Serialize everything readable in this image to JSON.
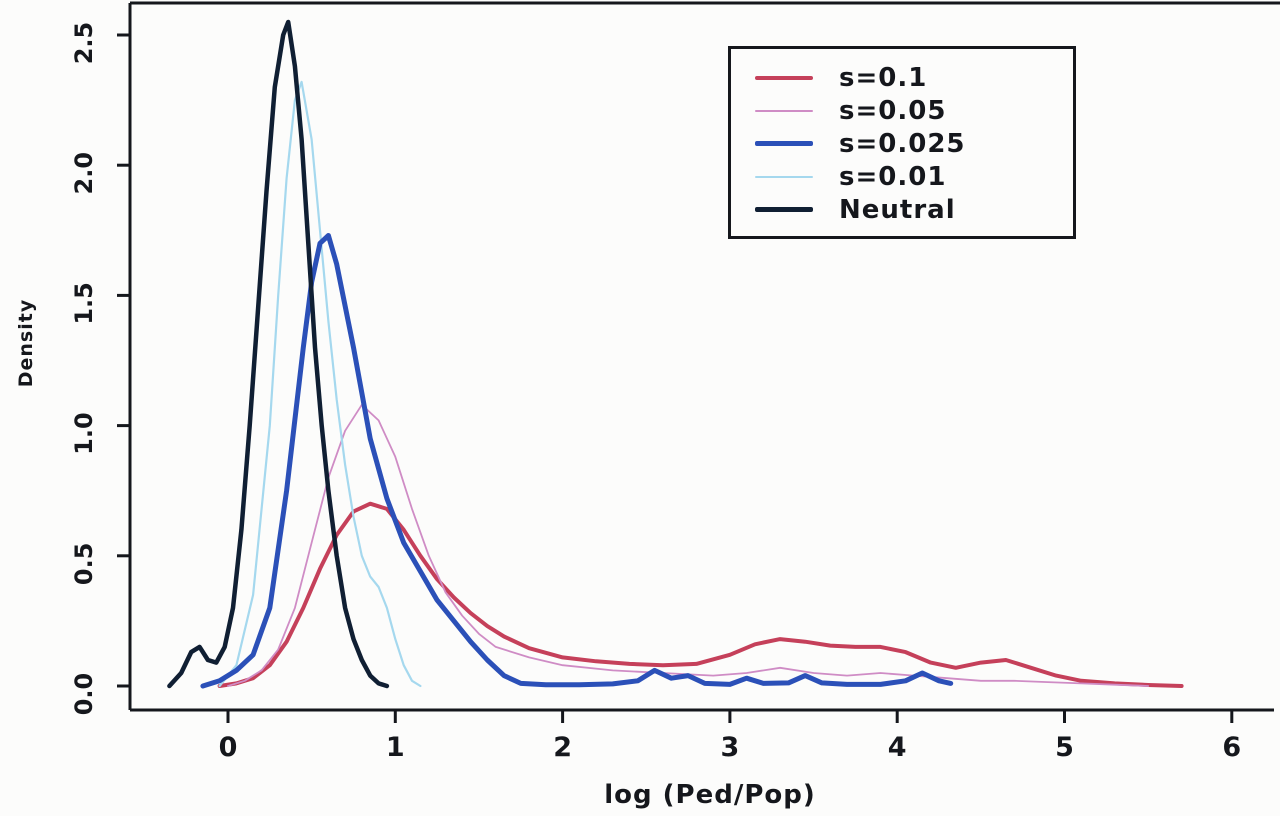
{
  "chart_data": {
    "type": "line",
    "subtype": "kernel-density",
    "title": "",
    "xlabel": "log (Ped/Pop)",
    "ylabel": "Density",
    "xlim": [
      -0.45,
      6.3
    ],
    "ylim": [
      0,
      2.65
    ],
    "grid": false,
    "legend_position": "top-right",
    "x_ticks": [
      0,
      1,
      2,
      3,
      4,
      5,
      6
    ],
    "x_tick_labels": [
      "0",
      "1",
      "2",
      "3",
      "4",
      "5",
      "6"
    ],
    "y_ticks": [
      0,
      0.5,
      1.0,
      1.5,
      2.0,
      2.5
    ],
    "y_tick_labels": [
      "0.0",
      "0.5",
      "1.0",
      "1.5",
      "2.0",
      "2.5"
    ],
    "axis_color": "#15171c",
    "series": [
      {
        "name": "s=0.1",
        "color": "#c5405a",
        "width": 4,
        "points": [
          [
            -0.05,
            0
          ],
          [
            0.05,
            0.01
          ],
          [
            0.15,
            0.03
          ],
          [
            0.25,
            0.08
          ],
          [
            0.35,
            0.17
          ],
          [
            0.45,
            0.3
          ],
          [
            0.55,
            0.45
          ],
          [
            0.65,
            0.58
          ],
          [
            0.75,
            0.67
          ],
          [
            0.85,
            0.7
          ],
          [
            0.95,
            0.68
          ],
          [
            1.05,
            0.6
          ],
          [
            1.15,
            0.5
          ],
          [
            1.25,
            0.41
          ],
          [
            1.35,
            0.34
          ],
          [
            1.45,
            0.28
          ],
          [
            1.55,
            0.23
          ],
          [
            1.65,
            0.19
          ],
          [
            1.8,
            0.145
          ],
          [
            2.0,
            0.11
          ],
          [
            2.2,
            0.095
          ],
          [
            2.4,
            0.085
          ],
          [
            2.6,
            0.08
          ],
          [
            2.8,
            0.085
          ],
          [
            3.0,
            0.12
          ],
          [
            3.15,
            0.16
          ],
          [
            3.3,
            0.18
          ],
          [
            3.45,
            0.17
          ],
          [
            3.6,
            0.155
          ],
          [
            3.75,
            0.15
          ],
          [
            3.9,
            0.15
          ],
          [
            4.05,
            0.13
          ],
          [
            4.2,
            0.09
          ],
          [
            4.35,
            0.07
          ],
          [
            4.5,
            0.09
          ],
          [
            4.65,
            0.1
          ],
          [
            4.8,
            0.07
          ],
          [
            4.95,
            0.04
          ],
          [
            5.1,
            0.02
          ],
          [
            5.3,
            0.01
          ],
          [
            5.5,
            0.004
          ],
          [
            5.7,
            0
          ]
        ]
      },
      {
        "name": "s=0.05",
        "color": "#cf8cc5",
        "width": 1.8,
        "points": [
          [
            0.0,
            0
          ],
          [
            0.1,
            0.02
          ],
          [
            0.2,
            0.06
          ],
          [
            0.3,
            0.14
          ],
          [
            0.4,
            0.3
          ],
          [
            0.5,
            0.55
          ],
          [
            0.6,
            0.8
          ],
          [
            0.7,
            0.98
          ],
          [
            0.8,
            1.08
          ],
          [
            0.9,
            1.02
          ],
          [
            1.0,
            0.88
          ],
          [
            1.1,
            0.68
          ],
          [
            1.2,
            0.5
          ],
          [
            1.3,
            0.36
          ],
          [
            1.4,
            0.27
          ],
          [
            1.5,
            0.2
          ],
          [
            1.6,
            0.15
          ],
          [
            1.8,
            0.11
          ],
          [
            2.0,
            0.08
          ],
          [
            2.3,
            0.06
          ],
          [
            2.6,
            0.05
          ],
          [
            2.9,
            0.04
          ],
          [
            3.1,
            0.05
          ],
          [
            3.3,
            0.07
          ],
          [
            3.5,
            0.05
          ],
          [
            3.7,
            0.04
          ],
          [
            3.9,
            0.05
          ],
          [
            4.1,
            0.04
          ],
          [
            4.3,
            0.03
          ],
          [
            4.5,
            0.02
          ],
          [
            4.7,
            0.02
          ],
          [
            4.9,
            0.015
          ],
          [
            5.1,
            0.01
          ],
          [
            5.3,
            0.005
          ],
          [
            5.5,
            0
          ]
        ]
      },
      {
        "name": "s=0.025",
        "color": "#2b50b8",
        "width": 5,
        "points": [
          [
            -0.15,
            0
          ],
          [
            -0.05,
            0.02
          ],
          [
            0.05,
            0.06
          ],
          [
            0.15,
            0.12
          ],
          [
            0.25,
            0.3
          ],
          [
            0.35,
            0.75
          ],
          [
            0.45,
            1.3
          ],
          [
            0.5,
            1.55
          ],
          [
            0.55,
            1.7
          ],
          [
            0.6,
            1.73
          ],
          [
            0.65,
            1.62
          ],
          [
            0.75,
            1.3
          ],
          [
            0.85,
            0.95
          ],
          [
            0.95,
            0.72
          ],
          [
            1.05,
            0.55
          ],
          [
            1.15,
            0.44
          ],
          [
            1.25,
            0.33
          ],
          [
            1.35,
            0.25
          ],
          [
            1.45,
            0.17
          ],
          [
            1.55,
            0.1
          ],
          [
            1.65,
            0.04
          ],
          [
            1.75,
            0.01
          ],
          [
            1.9,
            0.005
          ],
          [
            2.1,
            0.005
          ],
          [
            2.3,
            0.008
          ],
          [
            2.45,
            0.02
          ],
          [
            2.55,
            0.06
          ],
          [
            2.65,
            0.03
          ],
          [
            2.75,
            0.04
          ],
          [
            2.85,
            0.01
          ],
          [
            3.0,
            0.006
          ],
          [
            3.1,
            0.03
          ],
          [
            3.2,
            0.01
          ],
          [
            3.35,
            0.012
          ],
          [
            3.45,
            0.04
          ],
          [
            3.55,
            0.012
          ],
          [
            3.7,
            0.006
          ],
          [
            3.9,
            0.006
          ],
          [
            4.05,
            0.02
          ],
          [
            4.15,
            0.05
          ],
          [
            4.25,
            0.02
          ],
          [
            4.32,
            0.01
          ]
        ]
      },
      {
        "name": "s=0.01",
        "color": "#a5d8ee",
        "width": 2.2,
        "points": [
          [
            -0.05,
            0
          ],
          [
            0.05,
            0.08
          ],
          [
            0.15,
            0.35
          ],
          [
            0.25,
            1.0
          ],
          [
            0.3,
            1.5
          ],
          [
            0.35,
            1.95
          ],
          [
            0.4,
            2.25
          ],
          [
            0.44,
            2.32
          ],
          [
            0.5,
            2.1
          ],
          [
            0.55,
            1.75
          ],
          [
            0.6,
            1.4
          ],
          [
            0.65,
            1.1
          ],
          [
            0.7,
            0.85
          ],
          [
            0.75,
            0.65
          ],
          [
            0.8,
            0.5
          ],
          [
            0.85,
            0.42
          ],
          [
            0.9,
            0.38
          ],
          [
            0.95,
            0.3
          ],
          [
            1.0,
            0.18
          ],
          [
            1.05,
            0.08
          ],
          [
            1.1,
            0.02
          ],
          [
            1.15,
            0
          ]
        ]
      },
      {
        "name": "Neutral",
        "color": "#101f33",
        "width": 4.5,
        "points": [
          [
            -0.35,
            0
          ],
          [
            -0.28,
            0.05
          ],
          [
            -0.22,
            0.13
          ],
          [
            -0.17,
            0.15
          ],
          [
            -0.12,
            0.1
          ],
          [
            -0.07,
            0.09
          ],
          [
            -0.02,
            0.15
          ],
          [
            0.03,
            0.3
          ],
          [
            0.08,
            0.6
          ],
          [
            0.13,
            1.0
          ],
          [
            0.18,
            1.45
          ],
          [
            0.23,
            1.9
          ],
          [
            0.28,
            2.3
          ],
          [
            0.33,
            2.5
          ],
          [
            0.36,
            2.55
          ],
          [
            0.4,
            2.38
          ],
          [
            0.44,
            2.1
          ],
          [
            0.48,
            1.7
          ],
          [
            0.52,
            1.3
          ],
          [
            0.56,
            1.0
          ],
          [
            0.6,
            0.75
          ],
          [
            0.65,
            0.5
          ],
          [
            0.7,
            0.3
          ],
          [
            0.75,
            0.18
          ],
          [
            0.8,
            0.1
          ],
          [
            0.85,
            0.04
          ],
          [
            0.9,
            0.01
          ],
          [
            0.95,
            0
          ]
        ]
      }
    ]
  }
}
